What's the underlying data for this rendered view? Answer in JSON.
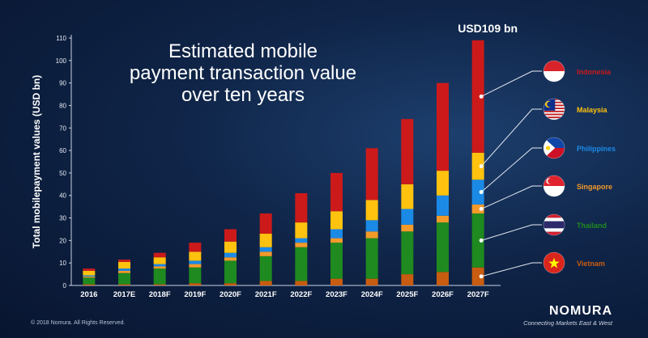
{
  "chart_data": {
    "type": "bar",
    "stacked": true,
    "title": "Estimated mobile payment transaction value over ten years",
    "title_lines": [
      "Estimated mobile",
      "payment transaction value",
      "over ten years"
    ],
    "ylabel": "Total mobilepayment values (USD bn)",
    "xlabel": "",
    "ylim": [
      0,
      110
    ],
    "yticks": [
      0,
      10,
      20,
      30,
      40,
      50,
      60,
      70,
      80,
      90,
      100,
      110
    ],
    "categories": [
      "2016",
      "2017E",
      "2018F",
      "2019F",
      "2020F",
      "2021F",
      "2022F",
      "2023F",
      "2024F",
      "2025F",
      "2026F",
      "2027F"
    ],
    "series": [
      {
        "name": "Vietnam",
        "color": "#c85c10",
        "values": [
          0.5,
          0.5,
          0.5,
          1,
          1,
          2,
          2,
          3,
          3,
          5,
          6,
          8
        ]
      },
      {
        "name": "Thailand",
        "color": "#1f8a1f",
        "values": [
          3,
          5,
          7,
          7,
          10,
          11,
          15,
          16,
          18,
          19,
          22,
          24
        ]
      },
      {
        "name": "Singapore",
        "color": "#f39a2a",
        "values": [
          0.5,
          1,
          1,
          1.5,
          1.5,
          2,
          2,
          2,
          3,
          3,
          3,
          4
        ]
      },
      {
        "name": "Philippines",
        "color": "#1b8ae6",
        "values": [
          0.5,
          1,
          1,
          1.5,
          2,
          2,
          2,
          4,
          5,
          7,
          9,
          11
        ]
      },
      {
        "name": "Malaysia",
        "color": "#ffc20e",
        "values": [
          2,
          3,
          3,
          4,
          5,
          6,
          7,
          8,
          9,
          11,
          11,
          12
        ]
      },
      {
        "name": "Indonesia",
        "color": "#cc1a1a",
        "values": [
          1,
          1,
          2,
          4,
          5.5,
          9,
          13,
          17,
          23,
          29,
          39,
          50
        ]
      }
    ],
    "annotations": [
      {
        "category": "2027F",
        "text": "USD109 bn"
      }
    ],
    "legend_position": "right"
  },
  "legend": [
    {
      "name": "Indonesia",
      "flag": "indonesia-flag-icon",
      "color": "#cc1a1a"
    },
    {
      "name": "Malaysia",
      "flag": "malaysia-flag-icon",
      "color": "#ffc20e"
    },
    {
      "name": "Philippines",
      "flag": "philippines-flag-icon",
      "color": "#1b8ae6"
    },
    {
      "name": "Singapore",
      "flag": "singapore-flag-icon",
      "color": "#f39a2a"
    },
    {
      "name": "Thailand",
      "flag": "thailand-flag-icon",
      "color": "#1f8a1f"
    },
    {
      "name": "Vietnam",
      "flag": "vietnam-flag-icon",
      "color": "#c85c10"
    }
  ],
  "footer": {
    "copyright": "© 2018 Nomura. All Rights Reserved.",
    "logo": "NOMURA",
    "tagline": "Connecting Markets East & West"
  }
}
